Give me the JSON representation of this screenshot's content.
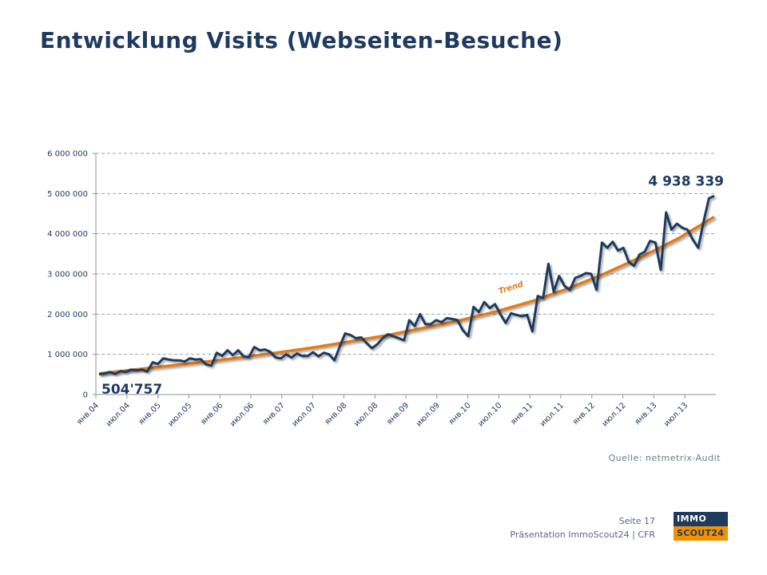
{
  "slide": {
    "title": "Entwicklung Visits (Webseiten-Besuche)",
    "source": "Quelle:  netmetrix-Audit",
    "page": "Seite 17",
    "presentation": "Präsentation ImmoScout24 | CFR",
    "logo_top": "IMMO",
    "logo_bottom": "SCOUT24"
  },
  "colors": {
    "series": "#1f3a5f",
    "trend": "#e07b1a",
    "grid": "#9aa3ad",
    "logo_blue": "#1f3a5f",
    "logo_orange": "#f29100"
  },
  "chart_data": {
    "type": "line",
    "title": "",
    "xlabel": "",
    "ylabel": "",
    "ylim": [
      0,
      6000000
    ],
    "yticks": [
      0,
      1000000,
      2000000,
      3000000,
      4000000,
      5000000,
      6000000
    ],
    "ytick_labels": [
      "0",
      "1 000 000",
      "2 000 000",
      "3 000 000",
      "4 000 000",
      "5 000 000",
      "6 000 000"
    ],
    "x_tick_labels": [
      "янв.04",
      "июл.04",
      "янв.05",
      "июл.05",
      "янв.06",
      "июл.06",
      "янв.07",
      "июл.07",
      "янв.08",
      "июл.08",
      "янв.09",
      "июл.09",
      "янв.10",
      "июл.10",
      "янв.11",
      "июл.11",
      "янв.12",
      "июл.12",
      "янв.13",
      "июл.13"
    ],
    "grid": true,
    "legend": "none",
    "series": [
      {
        "name": "",
        "values": [
          504757,
          520000,
          560000,
          510000,
          580000,
          560000,
          620000,
          600000,
          620000,
          570000,
          800000,
          760000,
          900000,
          870000,
          850000,
          850000,
          820000,
          900000,
          870000,
          880000,
          750000,
          720000,
          1040000,
          960000,
          1100000,
          980000,
          1100000,
          950000,
          930000,
          1180000,
          1100000,
          1120000,
          1060000,
          920000,
          900000,
          1000000,
          920000,
          1020000,
          960000,
          960000,
          1050000,
          950000,
          1040000,
          1000000,
          850000,
          1200000,
          1520000,
          1480000,
          1400000,
          1420000,
          1280000,
          1150000,
          1250000,
          1400000,
          1500000,
          1450000,
          1400000,
          1350000,
          1850000,
          1700000,
          2000000,
          1750000,
          1750000,
          1850000,
          1800000,
          1900000,
          1880000,
          1850000,
          1600000,
          1450000,
          2180000,
          2050000,
          2300000,
          2150000,
          2250000,
          2000000,
          1780000,
          2020000,
          1980000,
          1950000,
          1980000,
          1570000,
          2450000,
          2400000,
          3250000,
          2550000,
          2950000,
          2700000,
          2600000,
          2900000,
          2950000,
          3020000,
          3000000,
          2600000,
          3780000,
          3650000,
          3800000,
          3580000,
          3650000,
          3300000,
          3200000,
          3480000,
          3550000,
          3820000,
          3780000,
          3100000,
          4530000,
          4100000,
          4250000,
          4150000,
          4100000,
          3850000,
          3650000,
          4300000,
          4880000,
          4938339
        ]
      }
    ],
    "trend": {
      "label": "Trend",
      "values": [
        520000,
        620000,
        720000,
        820000,
        930000,
        1050000,
        1180000,
        1330000,
        1480000,
        1660000,
        1850000,
        2070000,
        2330000,
        2650000,
        3020000,
        3430000,
        3880000,
        4420000
      ]
    },
    "annotations": {
      "start_value": "504'757",
      "end_value": "4 938 339"
    }
  }
}
